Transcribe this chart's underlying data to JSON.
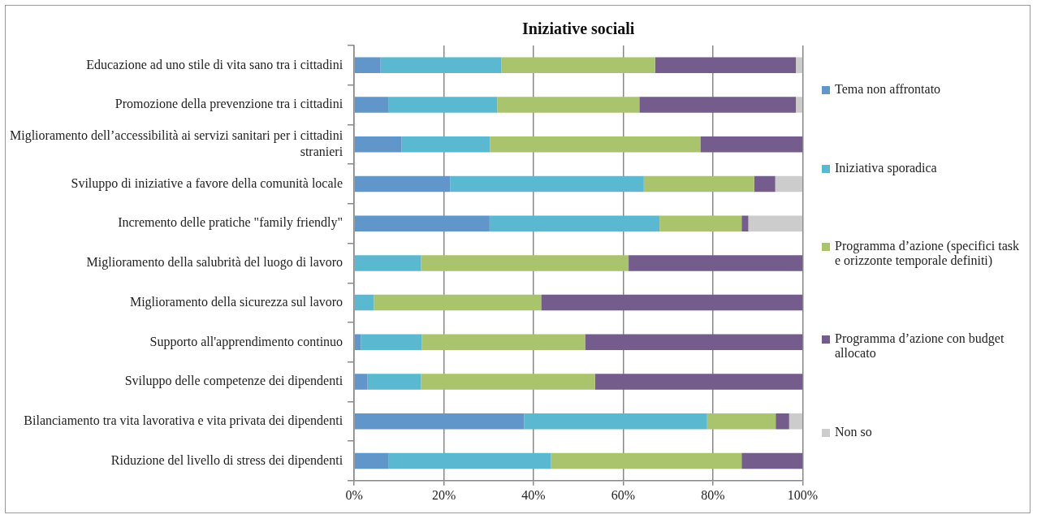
{
  "chart_data": {
    "type": "bar",
    "orientation": "horizontal",
    "stacked": true,
    "title": "Iniziative sociali",
    "categories": [
      "Educazione ad uno stile di vita sano tra i cittadini",
      "Promozione della prevenzione tra i cittadini",
      "Miglioramento dell’accessibilità ai servizi sanitari per i cittadini stranieri",
      "Sviluppo di iniziative a favore della comunità locale",
      "Incremento delle pratiche \"family friendly\"",
      "Miglioramento della salubrità del luogo di lavoro",
      "Miglioramento della sicurezza sul lavoro",
      "Supporto all'apprendimento continuo",
      "Sviluppo delle competenze dei dipendenti",
      "Bilanciamento tra vita lavorativa e vita privata dei dipendenti",
      "Riduzione del livello di stress dei dipendenti"
    ],
    "series": [
      {
        "name": "Tema non affrontato",
        "color": "#6096c9",
        "values": [
          5.9,
          7.6,
          10.6,
          21.4,
          30.2,
          0,
          0,
          1.5,
          3.0,
          37.9,
          7.6
        ]
      },
      {
        "name": "Iniziativa sporadica",
        "color": "#5bb8d1",
        "values": [
          26.9,
          24.3,
          19.7,
          43.2,
          37.9,
          14.9,
          4.4,
          13.6,
          11.9,
          40.8,
          36.3
        ]
      },
      {
        "name": "Programma d’azione (specifici task e orizzonte temporale definiti)",
        "color": "#a9c46c",
        "values": [
          34.3,
          31.7,
          46.9,
          24.6,
          18.3,
          46.3,
          37.3,
          36.4,
          38.8,
          15.3,
          42.5
        ]
      },
      {
        "name": "Programma d’azione con budget allocato",
        "color": "#745d8c",
        "values": [
          31.4,
          34.9,
          22.8,
          4.7,
          1.5,
          38.8,
          58.3,
          48.5,
          46.3,
          3.0,
          13.6
        ]
      },
      {
        "name": "Non so",
        "color": "#cccccc",
        "values": [
          1.5,
          1.5,
          0,
          6.1,
          12.1,
          0,
          0,
          0,
          0,
          3.0,
          0
        ]
      }
    ],
    "xlim": [
      0,
      100
    ],
    "xticks": [
      {
        "value": 0,
        "label": "0%"
      },
      {
        "value": 20,
        "label": "20%"
      },
      {
        "value": 40,
        "label": "40%"
      },
      {
        "value": 60,
        "label": "60%"
      },
      {
        "value": 80,
        "label": "80%"
      },
      {
        "value": 100,
        "label": "100%"
      }
    ],
    "grid": "x",
    "legend": "right"
  }
}
